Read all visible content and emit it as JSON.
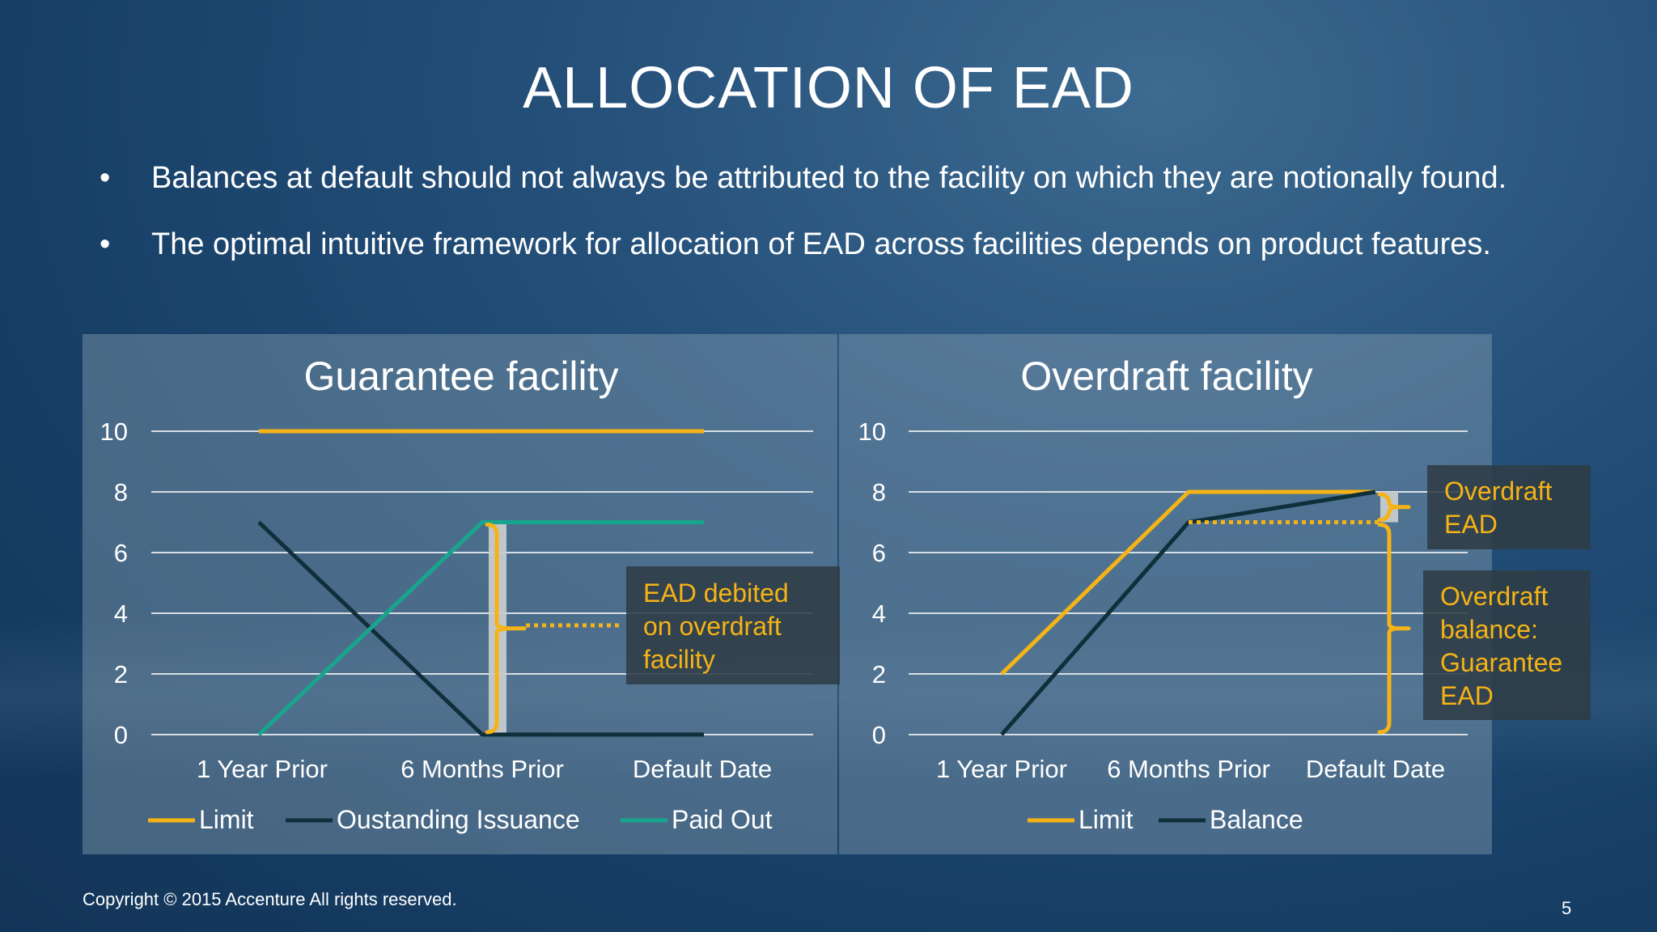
{
  "title": "ALLOCATION OF EAD",
  "bullets": [
    {
      "text": "Balances at default should not always be attributed to the facility on which they are notionally found."
    },
    {
      "text": "The optimal intuitive framework for allocation of EAD across facilities depends on product features."
    }
  ],
  "footer": {
    "copyright": "Copyright © 2015 Accenture  All rights reserved.",
    "page_number": "5"
  },
  "chart_data": [
    {
      "type": "line",
      "title": "Guarantee facility",
      "categories": [
        "1 Year Prior",
        "6 Months Prior",
        "Default Date"
      ],
      "ylim": [
        0,
        10
      ],
      "yticks": [
        0,
        2,
        4,
        6,
        8,
        10
      ],
      "grid": true,
      "legend_position": "bottom",
      "series": [
        {
          "name": "Limit",
          "values": [
            10,
            10,
            10
          ],
          "color": "#f5b316"
        },
        {
          "name": "Oustanding Issuance",
          "values": [
            7,
            0,
            0
          ],
          "color": "#0f2f3a"
        },
        {
          "name": "Paid Out",
          "values": [
            0,
            7,
            7
          ],
          "color": "#17a68d"
        }
      ],
      "brackets": [
        {
          "at_category": 1,
          "from": 0,
          "to": 7,
          "color": "#f5b316"
        }
      ],
      "callouts": [
        {
          "lines": [
            "EAD debited",
            "on overdraft",
            "facility"
          ],
          "color": "#f5b316"
        }
      ]
    },
    {
      "type": "line",
      "title": "Overdraft facility",
      "categories": [
        "1 Year Prior",
        "6 Months Prior",
        "Default Date"
      ],
      "ylim": [
        0,
        10
      ],
      "yticks": [
        0,
        2,
        4,
        6,
        8,
        10
      ],
      "grid": true,
      "legend_position": "bottom",
      "series": [
        {
          "name": "Limit",
          "values": [
            2,
            8,
            8
          ],
          "color": "#f5b316"
        },
        {
          "name": "Balance",
          "values": [
            0,
            7,
            8
          ],
          "color": "#0f2f3a"
        }
      ],
      "reference_lines": [
        {
          "from_category": 1,
          "to_category": 2,
          "value": 7,
          "color": "#f5b316"
        }
      ],
      "brackets": [
        {
          "at_category": 2,
          "from": 7,
          "to": 8,
          "color": "#f5b316"
        },
        {
          "at_category": 2,
          "from": 0,
          "to": 7,
          "color": "#f5b316"
        }
      ],
      "callouts": [
        {
          "lines": [
            "Overdraft",
            "EAD"
          ],
          "color": "#f5b316"
        },
        {
          "lines": [
            "Overdraft",
            "balance:",
            "Guarantee",
            "EAD"
          ],
          "color": "#f5b316"
        }
      ]
    }
  ]
}
